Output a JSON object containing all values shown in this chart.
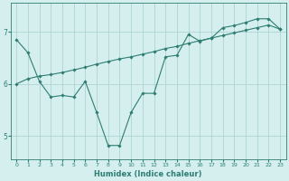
{
  "xlabel": "Humidex (Indice chaleur)",
  "background_color": "#d5efef",
  "grid_color": "#aed4d4",
  "line_color": "#2e7d72",
  "xlim": [
    -0.5,
    23.5
  ],
  "ylim": [
    4.55,
    7.55
  ],
  "yticks": [
    5,
    6,
    7
  ],
  "xticks": [
    0,
    1,
    2,
    3,
    4,
    5,
    6,
    7,
    8,
    9,
    10,
    11,
    12,
    13,
    14,
    15,
    16,
    17,
    18,
    19,
    20,
    21,
    22,
    23
  ],
  "line1_x": [
    0,
    1,
    2,
    3,
    4,
    5,
    6,
    7,
    8,
    9,
    10,
    11,
    12,
    13,
    14,
    15,
    16,
    17,
    18,
    19,
    20,
    21,
    22,
    23
  ],
  "line1_y": [
    6.0,
    6.1,
    6.15,
    6.18,
    6.22,
    6.27,
    6.32,
    6.38,
    6.43,
    6.48,
    6.52,
    6.57,
    6.62,
    6.68,
    6.72,
    6.78,
    6.83,
    6.88,
    6.93,
    6.98,
    7.03,
    7.08,
    7.13,
    7.05
  ],
  "line2_x": [
    0,
    1,
    2,
    3,
    4,
    5,
    6,
    7,
    8,
    9,
    10,
    11,
    12,
    13,
    14,
    15,
    16,
    17,
    18,
    19,
    20,
    21,
    22,
    23
  ],
  "line2_y": [
    6.85,
    6.6,
    6.05,
    5.75,
    5.78,
    5.75,
    6.05,
    5.45,
    4.82,
    4.82,
    5.45,
    5.82,
    5.82,
    6.52,
    6.55,
    6.95,
    6.82,
    6.88,
    7.08,
    7.12,
    7.18,
    7.25,
    7.25,
    7.05
  ]
}
